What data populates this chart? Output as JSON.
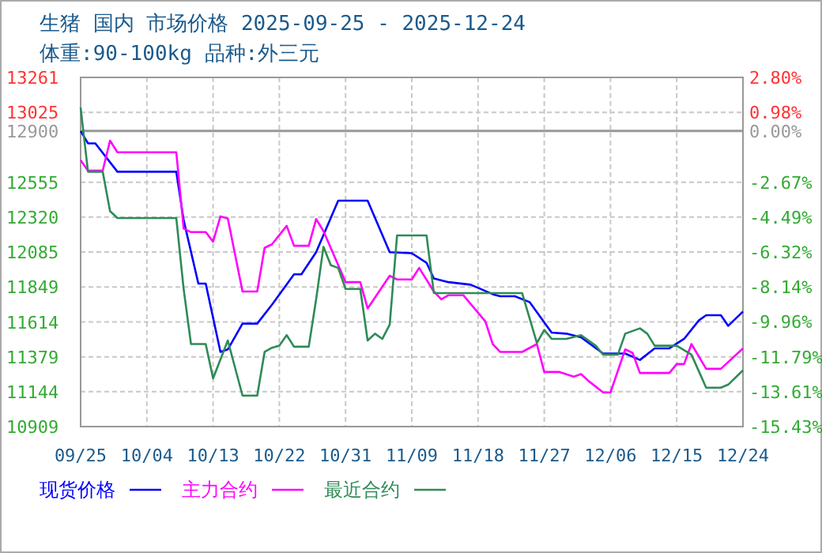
{
  "chart_data": {
    "type": "line",
    "title": "生猪 国内 市场价格 2025-09-25 - 2025-12-24",
    "subtitle": "体重:90-100kg 品种:外三元",
    "xlim": [
      "2025-09-25",
      "2025-12-24"
    ],
    "xticks": [
      {
        "value": "2025-09-25",
        "label": "09/25"
      },
      {
        "value": "2025-10-04",
        "label": "10/04"
      },
      {
        "value": "2025-10-13",
        "label": "10/13"
      },
      {
        "value": "2025-10-22",
        "label": "10/22"
      },
      {
        "value": "2025-10-31",
        "label": "10/31"
      },
      {
        "value": "2025-11-09",
        "label": "11/09"
      },
      {
        "value": "2025-11-18",
        "label": "11/18"
      },
      {
        "value": "2025-11-27",
        "label": "11/27"
      },
      {
        "value": "2025-12-06",
        "label": "12/06"
      },
      {
        "value": "2025-12-15",
        "label": "12/15"
      },
      {
        "value": "2025-12-24",
        "label": "12/24"
      }
    ],
    "ylim": [
      10909,
      13261
    ],
    "yticks": [
      10909,
      11144,
      11379,
      11614,
      11849,
      12085,
      12320,
      12555,
      12900,
      13025,
      13261
    ],
    "y2lim": [
      -15.43,
      2.8
    ],
    "y2ticks": [
      {
        "value": -15.43,
        "label": "-15.43%"
      },
      {
        "value": -13.61,
        "label": "-13.61%"
      },
      {
        "value": -11.79,
        "label": "-11.79%"
      },
      {
        "value": -9.96,
        "label": "-9.96%"
      },
      {
        "value": -8.14,
        "label": "-8.14%"
      },
      {
        "value": -6.32,
        "label": "-6.32%"
      },
      {
        "value": -4.49,
        "label": "-4.49%"
      },
      {
        "value": -2.67,
        "label": "-2.67%"
      },
      {
        "value": 0,
        "label": "0.00%"
      },
      {
        "value": 0.98,
        "label": "0.98%"
      },
      {
        "value": 2.8,
        "label": "2.80%"
      }
    ],
    "ref_lines": [
      {
        "axis": "y",
        "value": 12900,
        "color": "#999999"
      }
    ],
    "grid": true,
    "legend": "bottom",
    "line_style": "solid",
    "marker": "none",
    "series": [
      {
        "name": "现货价格",
        "color": "#0000ff",
        "x": [
          "2025-09-25",
          "2025-09-26",
          "2025-09-27",
          "2025-09-30",
          "2025-10-08",
          "2025-10-09",
          "2025-10-11",
          "2025-10-12",
          "2025-10-14",
          "2025-10-15",
          "2025-10-17",
          "2025-10-19",
          "2025-10-21",
          "2025-10-24",
          "2025-10-25",
          "2025-10-27",
          "2025-10-30",
          "2025-11-03",
          "2025-11-06",
          "2025-11-09",
          "2025-11-11",
          "2025-11-12",
          "2025-11-14",
          "2025-11-17",
          "2025-11-20",
          "2025-11-21",
          "2025-11-23",
          "2025-11-25",
          "2025-11-28",
          "2025-11-30",
          "2025-12-02",
          "2025-12-05",
          "2025-12-08",
          "2025-12-10",
          "2025-12-12",
          "2025-12-14",
          "2025-12-16",
          "2025-12-18",
          "2025-12-19",
          "2025-12-21",
          "2025-12-22",
          "2025-12-24"
        ],
        "values": [
          12900,
          12817,
          12817,
          12626,
          12626,
          12300,
          11872,
          11872,
          11412,
          11429,
          11603,
          11603,
          11730,
          11935,
          11935,
          12084,
          12431,
          12431,
          12084,
          12077,
          12013,
          11907,
          11882,
          11865,
          11801,
          11787,
          11787,
          11748,
          11542,
          11535,
          11510,
          11401,
          11401,
          11358,
          11436,
          11436,
          11500,
          11624,
          11659,
          11659,
          11588,
          11684
        ]
      },
      {
        "name": "主力合约",
        "color": "#ff00ff",
        "x": [
          "2025-09-25",
          "2025-09-26",
          "2025-09-28",
          "2025-09-29",
          "2025-09-30",
          "2025-10-08",
          "2025-10-09",
          "2025-10-10",
          "2025-10-12",
          "2025-10-13",
          "2025-10-14",
          "2025-10-15",
          "2025-10-17",
          "2025-10-19",
          "2025-10-20",
          "2025-10-21",
          "2025-10-23",
          "2025-10-24",
          "2025-10-26",
          "2025-10-27",
          "2025-10-28",
          "2025-10-31",
          "2025-11-02",
          "2025-11-03",
          "2025-11-06",
          "2025-11-07",
          "2025-11-09",
          "2025-11-10",
          "2025-11-12",
          "2025-11-13",
          "2025-11-14",
          "2025-11-16",
          "2025-11-19",
          "2025-11-20",
          "2025-11-21",
          "2025-11-24",
          "2025-11-26",
          "2025-11-27",
          "2025-11-29",
          "2025-12-01",
          "2025-12-02",
          "2025-12-03",
          "2025-12-05",
          "2025-12-06",
          "2025-12-08",
          "2025-12-09",
          "2025-12-10",
          "2025-12-11",
          "2025-12-14",
          "2025-12-15",
          "2025-12-16",
          "2025-12-17",
          "2025-12-19",
          "2025-12-21",
          "2025-12-24"
        ],
        "values": [
          12704,
          12633,
          12633,
          12835,
          12757,
          12757,
          12243,
          12219,
          12219,
          12155,
          12325,
          12311,
          11819,
          11819,
          12113,
          12137,
          12261,
          12127,
          12127,
          12307,
          12226,
          11882,
          11882,
          11705,
          11925,
          11900,
          11900,
          11978,
          11819,
          11766,
          11794,
          11794,
          11617,
          11465,
          11412,
          11412,
          11465,
          11277,
          11277,
          11245,
          11263,
          11217,
          11139,
          11139,
          11429,
          11405,
          11270,
          11270,
          11270,
          11330,
          11330,
          11465,
          11298,
          11298,
          11436
        ]
      },
      {
        "name": "最近合约",
        "color": "#2e8b57",
        "x": [
          "2025-09-25",
          "2025-09-26",
          "2025-09-28",
          "2025-09-29",
          "2025-09-30",
          "2025-10-08",
          "2025-10-09",
          "2025-10-10",
          "2025-10-12",
          "2025-10-13",
          "2025-10-15",
          "2025-10-17",
          "2025-10-19",
          "2025-10-20",
          "2025-10-21",
          "2025-10-22",
          "2025-10-23",
          "2025-10-24",
          "2025-10-26",
          "2025-10-27",
          "2025-10-28",
          "2025-10-29",
          "2025-10-30",
          "2025-10-31",
          "2025-11-02",
          "2025-11-03",
          "2025-11-04",
          "2025-11-05",
          "2025-11-06",
          "2025-11-07",
          "2025-11-11",
          "2025-11-12",
          "2025-11-24",
          "2025-11-26",
          "2025-11-27",
          "2025-11-28",
          "2025-11-30",
          "2025-12-02",
          "2025-12-04",
          "2025-12-05",
          "2025-12-07",
          "2025-12-08",
          "2025-12-10",
          "2025-12-11",
          "2025-12-12",
          "2025-12-15",
          "2025-12-17",
          "2025-12-19",
          "2025-12-21",
          "2025-12-22",
          "2025-12-24"
        ],
        "values": [
          13058,
          12626,
          12626,
          12360,
          12314,
          12314,
          11836,
          11465,
          11465,
          11234,
          11489,
          11118,
          11118,
          11412,
          11440,
          11454,
          11525,
          11447,
          11447,
          11766,
          12120,
          11996,
          11978,
          11836,
          11836,
          11489,
          11535,
          11500,
          11596,
          12197,
          12197,
          11808,
          11808,
          11472,
          11560,
          11500,
          11500,
          11525,
          11454,
          11394,
          11394,
          11535,
          11571,
          11535,
          11454,
          11454,
          11394,
          11171,
          11171,
          11192,
          11288
        ]
      }
    ]
  }
}
